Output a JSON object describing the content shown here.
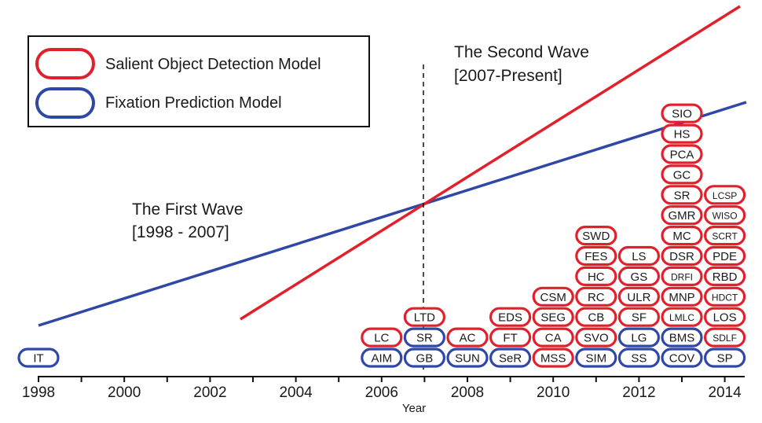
{
  "colors": {
    "salient": "#e2202c",
    "fixation": "#2f47a6",
    "axis": "#111111"
  },
  "legend": {
    "salient_label": "Salient Object Detection Model",
    "fixation_label": "Fixation Prediction Model"
  },
  "first_wave": {
    "title": "The First Wave",
    "range": "[1998 - 2007]"
  },
  "second_wave": {
    "title": "The Second Wave",
    "range": "[2007-Present]"
  },
  "axis": {
    "title": "Year",
    "tick_labels": [
      "1998",
      "2000",
      "2002",
      "2004",
      "2006",
      "2008",
      "2010",
      "2012",
      "2014"
    ]
  },
  "columns": [
    {
      "year": "1998",
      "models": [
        {
          "name": "IT",
          "type": "fixation"
        }
      ]
    },
    {
      "year": "2006",
      "models": [
        {
          "name": "AIM",
          "type": "fixation"
        },
        {
          "name": "LC",
          "type": "salient"
        }
      ]
    },
    {
      "year": "2007",
      "models": [
        {
          "name": "GB",
          "type": "fixation"
        },
        {
          "name": "SR",
          "type": "fixation"
        },
        {
          "name": "LTD",
          "type": "salient"
        }
      ]
    },
    {
      "year": "2008",
      "models": [
        {
          "name": "SUN",
          "type": "fixation"
        },
        {
          "name": "AC",
          "type": "salient"
        }
      ]
    },
    {
      "year": "2009",
      "models": [
        {
          "name": "SeR",
          "type": "fixation"
        },
        {
          "name": "FT",
          "type": "salient"
        },
        {
          "name": "EDS",
          "type": "salient"
        }
      ]
    },
    {
      "year": "2010",
      "models": [
        {
          "name": "MSS",
          "type": "salient"
        },
        {
          "name": "CA",
          "type": "salient"
        },
        {
          "name": "SEG",
          "type": "salient"
        },
        {
          "name": "CSM",
          "type": "salient"
        }
      ]
    },
    {
      "year": "2011",
      "models": [
        {
          "name": "SIM",
          "type": "fixation"
        },
        {
          "name": "SVO",
          "type": "salient"
        },
        {
          "name": "CB",
          "type": "salient"
        },
        {
          "name": "RC",
          "type": "salient"
        },
        {
          "name": "HC",
          "type": "salient"
        },
        {
          "name": "FES",
          "type": "salient"
        },
        {
          "name": "SWD",
          "type": "salient"
        }
      ]
    },
    {
      "year": "2012",
      "models": [
        {
          "name": "SS",
          "type": "fixation"
        },
        {
          "name": "LG",
          "type": "fixation"
        },
        {
          "name": "SF",
          "type": "salient"
        },
        {
          "name": "ULR",
          "type": "salient"
        },
        {
          "name": "GS",
          "type": "salient"
        },
        {
          "name": "LS",
          "type": "salient"
        }
      ]
    },
    {
      "year": "2013",
      "models": [
        {
          "name": "COV",
          "type": "fixation"
        },
        {
          "name": "BMS",
          "type": "fixation"
        },
        {
          "name": "LMLC",
          "type": "salient"
        },
        {
          "name": "MNP",
          "type": "salient"
        },
        {
          "name": "DRFI",
          "type": "salient"
        },
        {
          "name": "DSR",
          "type": "salient"
        },
        {
          "name": "MC",
          "type": "salient"
        },
        {
          "name": "GMR",
          "type": "salient"
        },
        {
          "name": "SR",
          "type": "salient"
        },
        {
          "name": "GC",
          "type": "salient"
        },
        {
          "name": "PCA",
          "type": "salient"
        },
        {
          "name": "HS",
          "type": "salient"
        },
        {
          "name": "SIO",
          "type": "salient"
        }
      ]
    },
    {
      "year": "2014",
      "models": [
        {
          "name": "SP",
          "type": "fixation"
        },
        {
          "name": "SDLF",
          "type": "salient"
        },
        {
          "name": "LOS",
          "type": "salient"
        },
        {
          "name": "HDCT",
          "type": "salient"
        },
        {
          "name": "RBD",
          "type": "salient"
        },
        {
          "name": "PDE",
          "type": "salient"
        },
        {
          "name": "SCRT",
          "type": "salient"
        },
        {
          "name": "WISO",
          "type": "salient"
        },
        {
          "name": "LCSP",
          "type": "salient"
        }
      ]
    }
  ]
}
